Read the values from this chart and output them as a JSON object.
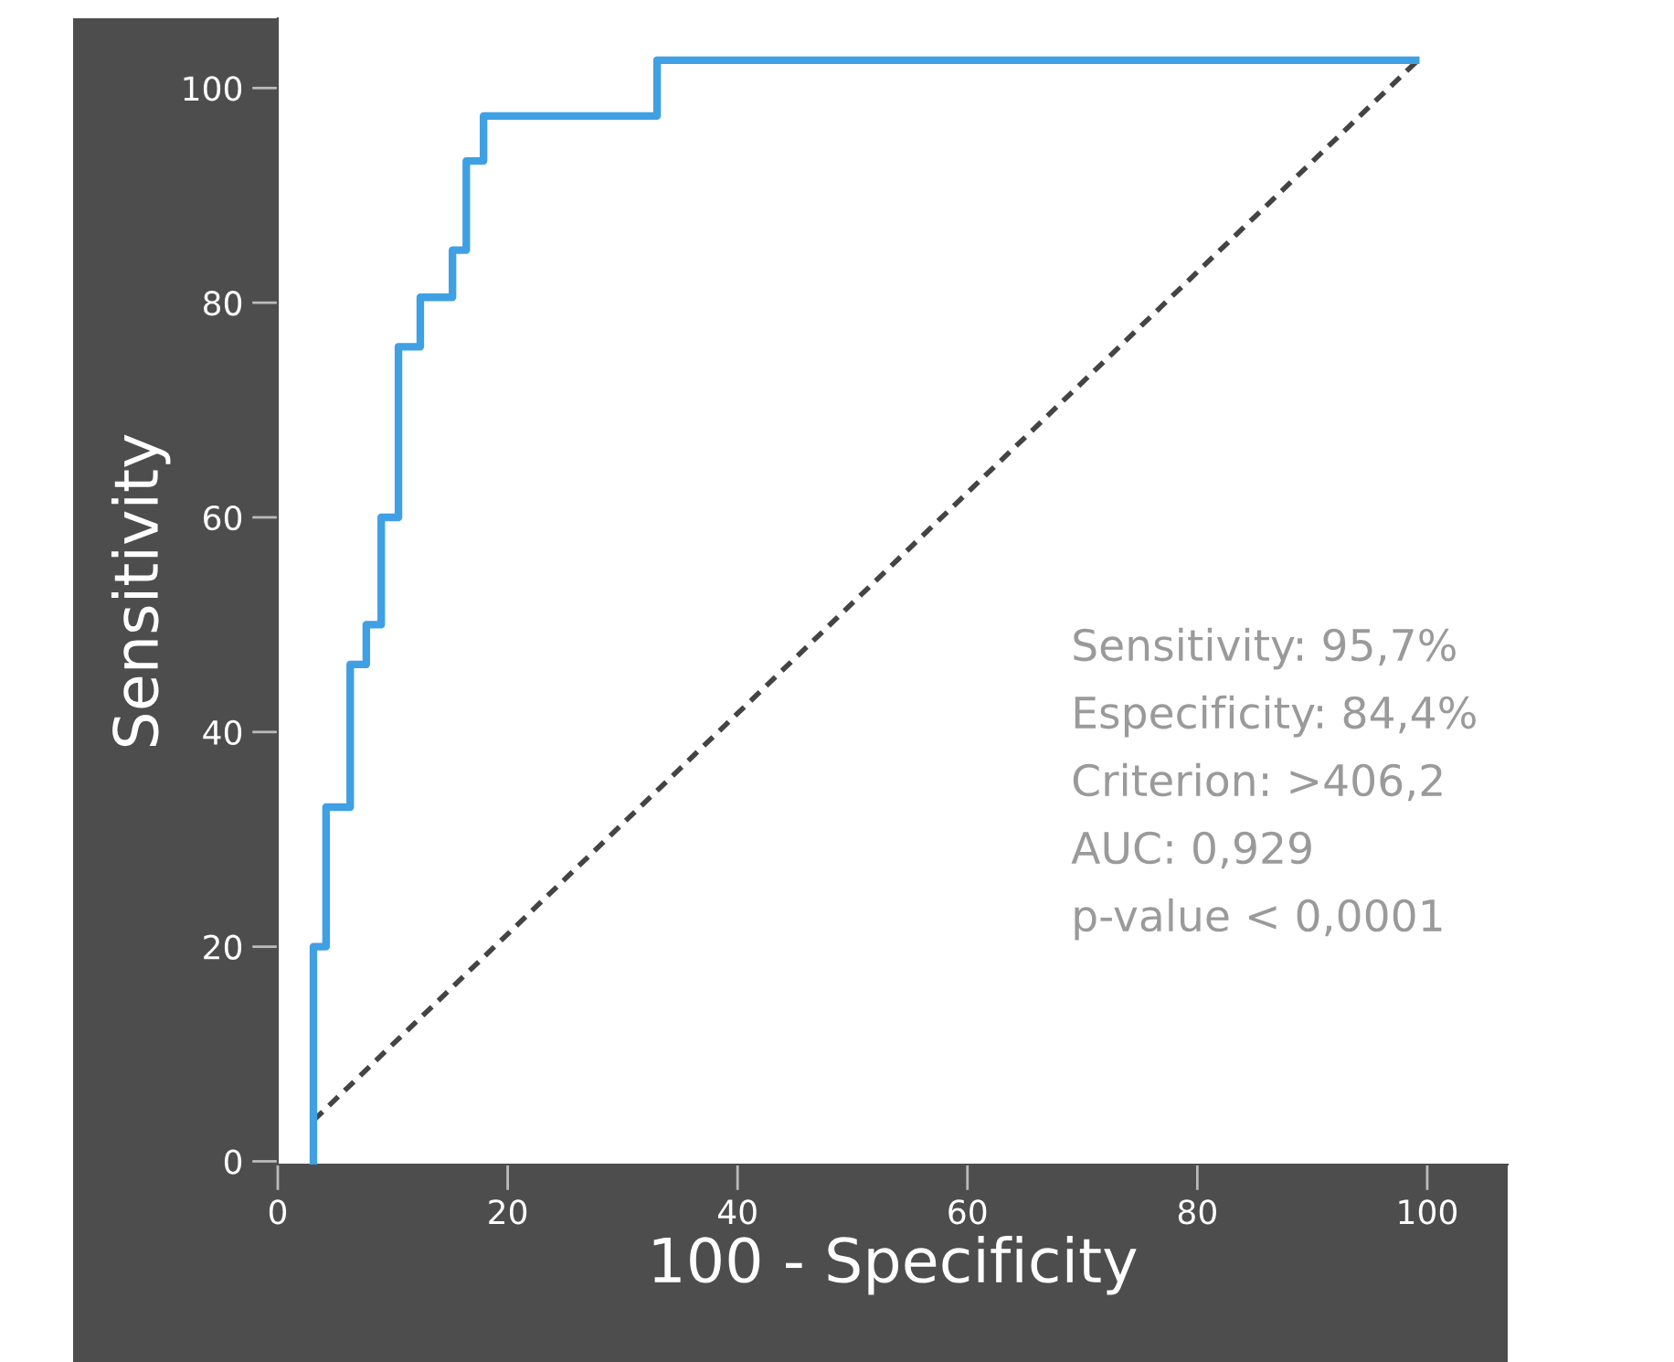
{
  "chart_data": {
    "type": "step",
    "xlabel": "100 - Specificity",
    "ylabel": "Sensitivity",
    "xlim": [
      0,
      107
    ],
    "ylim": [
      -0.3,
      106.5
    ],
    "xticks": [
      0,
      20,
      40,
      60,
      80,
      100
    ],
    "yticks": [
      0,
      20,
      40,
      60,
      80,
      100
    ],
    "grid": false,
    "legend": false,
    "series": [
      {
        "color": "#3fa0e3",
        "line_style": "solid",
        "x": [
          3.1,
          3.1,
          4.2,
          6.3,
          7.7,
          9.0,
          10.5,
          12.4,
          15.2,
          16.4,
          17.9,
          33.0,
          99
        ],
        "values": [
          0,
          20,
          33,
          46.3,
          50,
          60,
          75.9,
          80.5,
          84.9,
          93.2,
          97.4,
          102.6,
          102.6
        ]
      },
      {
        "type": "line",
        "color": "#444444",
        "line_style": "dashed",
        "x": [
          3.1,
          99
        ],
        "values": [
          3.8,
          102.4
        ]
      }
    ],
    "annotations": [
      "Sensitivity: 95,7%",
      "Especificity: 84,4%",
      "Criterion: >406,2",
      "AUC: 0,929",
      "p-value < 0,0001"
    ]
  }
}
